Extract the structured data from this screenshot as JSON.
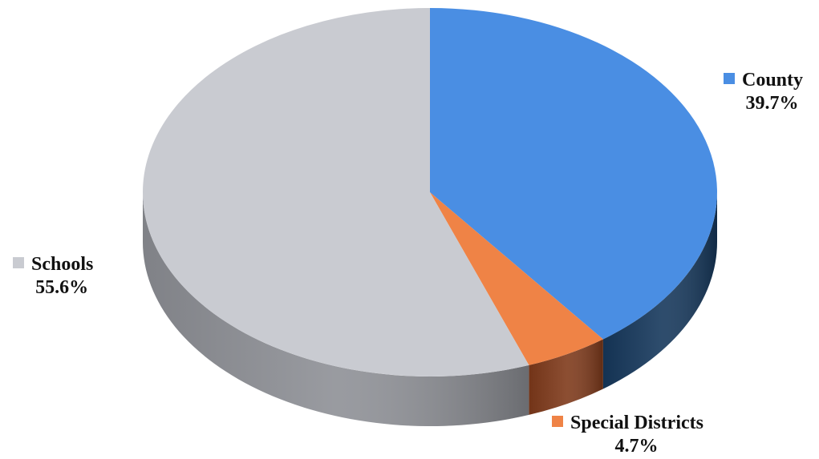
{
  "chart_data": {
    "type": "pie",
    "style": "3d",
    "slices": [
      {
        "label": "County",
        "value": 39.7,
        "value_text": "39.7%",
        "color": "#4a8ee3",
        "side_color": "#16385c"
      },
      {
        "label": "Special Districts",
        "value": 4.7,
        "value_text": "4.7%",
        "color": "#ef8346",
        "side_color": "#7f3a1b"
      },
      {
        "label": "Schools",
        "value": 55.6,
        "value_text": "55.6%",
        "color": "#c9cbd1",
        "side_color": "#8e9096"
      }
    ]
  }
}
